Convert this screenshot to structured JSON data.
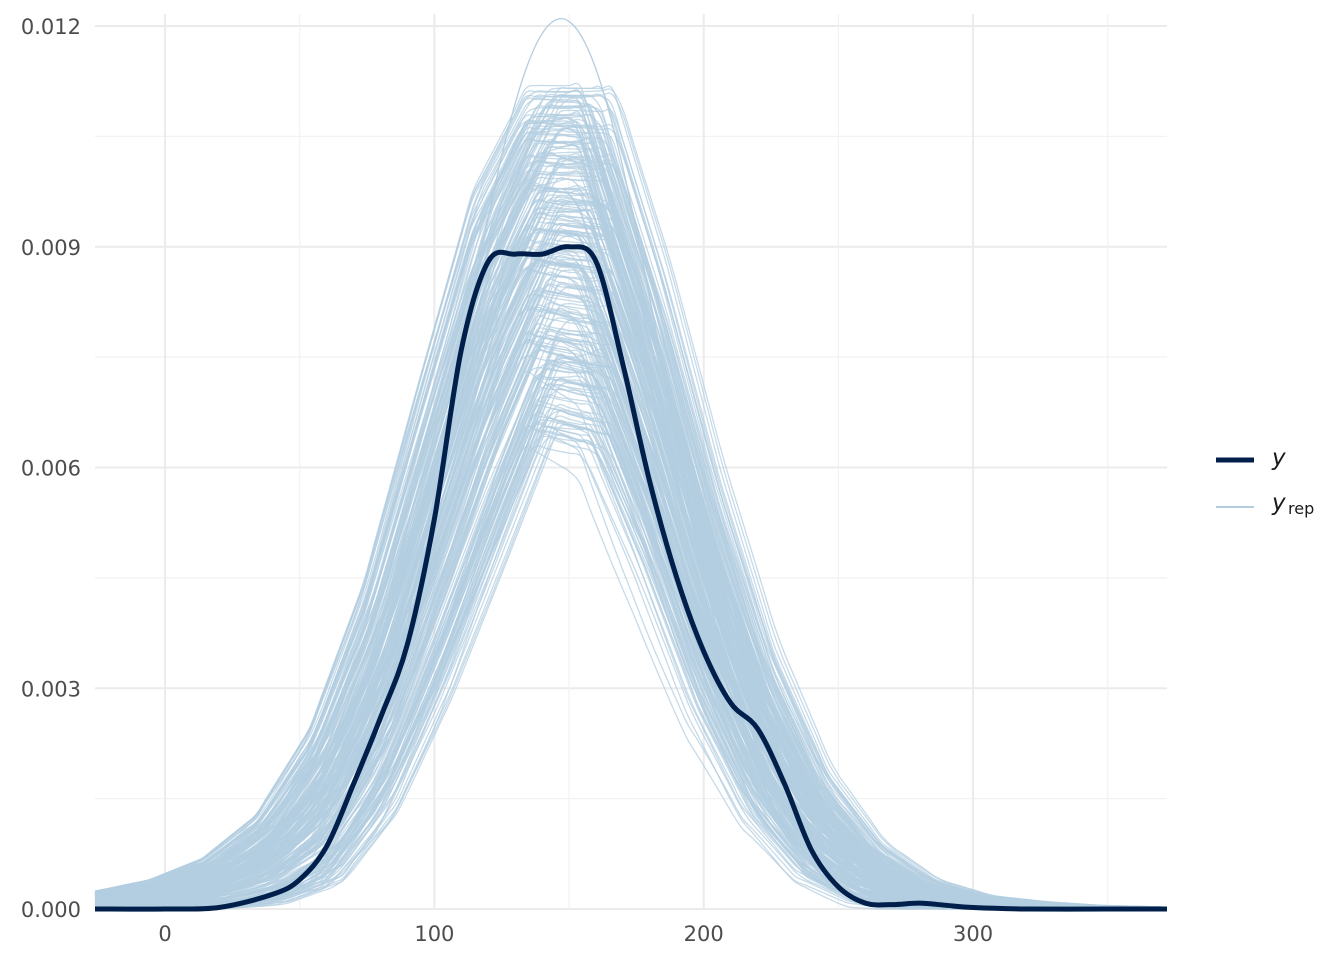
{
  "chart_data": {
    "type": "line",
    "title": "",
    "xlabel": "",
    "ylabel": "",
    "xlim": [
      -26,
      372
    ],
    "ylim": [
      0,
      0.012
    ],
    "x_ticks": [
      0,
      100,
      200,
      300
    ],
    "x_tick_labels": [
      "0",
      "100",
      "200",
      "300"
    ],
    "y_ticks": [
      0,
      0.003,
      0.006,
      0.009,
      0.012
    ],
    "y_tick_labels": [
      "0.000",
      "0.003",
      "0.006",
      "0.009",
      "0.012"
    ],
    "grid": true,
    "legend_position": "right",
    "legend": [
      {
        "label": "y",
        "color": "#011f4b",
        "style": "thick"
      },
      {
        "label": "y",
        "subscript": "rep",
        "color": "#b3cde0",
        "style": "thin"
      }
    ],
    "series": [
      {
        "name": "y",
        "color": "#011f4b",
        "x": [
          -26,
          0,
          20,
          40,
          50,
          60,
          70,
          80,
          90,
          100,
          110,
          120,
          130,
          140,
          150,
          160,
          170,
          180,
          190,
          200,
          210,
          220,
          230,
          240,
          250,
          260,
          270,
          280,
          290,
          300,
          320,
          350,
          372
        ],
        "y": [
          0.0,
          0.0,
          2e-05,
          0.0002,
          0.0004,
          0.00085,
          0.0017,
          0.0026,
          0.0036,
          0.0053,
          0.0076,
          0.0088,
          0.0089,
          0.0089,
          0.009,
          0.0088,
          0.0074,
          0.0058,
          0.0045,
          0.0035,
          0.0028,
          0.00245,
          0.0017,
          0.0008,
          0.0003,
          8e-05,
          6e-05,
          8e-05,
          5e-05,
          2e-05,
          0.0,
          0.0,
          0.0
        ]
      }
    ],
    "replicates": {
      "name": "y_rep",
      "color": "#b3cde0",
      "count": 250,
      "envelope_x": [
        -26,
        0,
        20,
        40,
        60,
        80,
        100,
        120,
        140,
        160,
        180,
        200,
        220,
        240,
        260,
        280,
        300,
        320,
        340,
        372
      ],
      "envelope_lower": [
        0.0,
        0.0,
        0.0,
        5e-05,
        0.0003,
        0.0012,
        0.0027,
        0.0045,
        0.0064,
        0.0062,
        0.0045,
        0.0026,
        0.0012,
        0.0004,
        8e-05,
        1e-05,
        0.0,
        0.0,
        0.0,
        0.0
      ],
      "envelope_upper": [
        0.0002,
        0.0004,
        0.0007,
        0.0013,
        0.0025,
        0.0045,
        0.0072,
        0.0098,
        0.0112,
        0.0112,
        0.0088,
        0.006,
        0.0036,
        0.0019,
        0.0009,
        0.0004,
        0.00018,
        0.0001,
        5e-05,
        2e-05
      ],
      "peak_max": 0.0121,
      "peak_x": 147
    }
  }
}
